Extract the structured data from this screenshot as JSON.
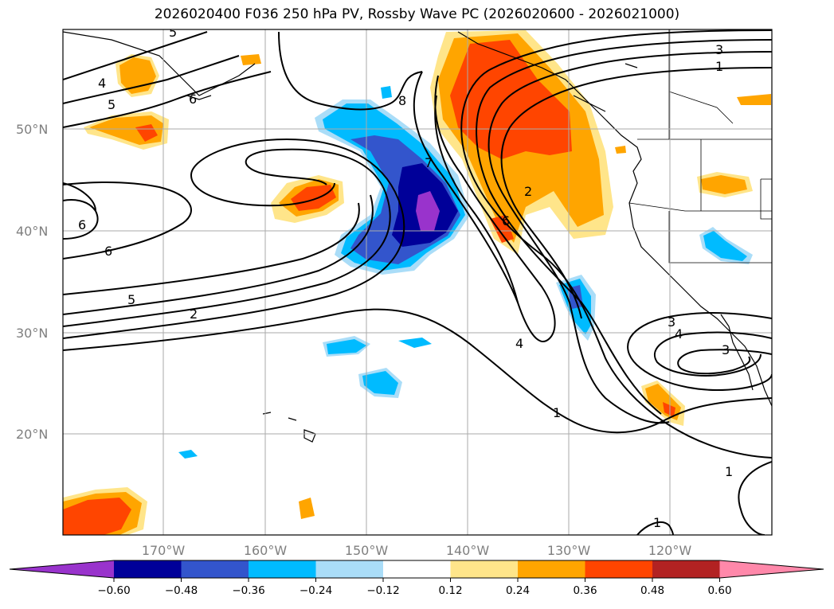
{
  "title": "2026020400 F036 250 hPa PV, Rossby Wave PC (2026020600 - 2026021000)",
  "map": {
    "lat_labels": [
      "50°N",
      "40°N",
      "30°N",
      "20°N"
    ],
    "lon_labels": [
      "170°W",
      "160°W",
      "150°W",
      "140°W",
      "130°W",
      "120°W"
    ],
    "gridline_color": "#aaaaaa"
  },
  "contour_labels": [
    "5",
    "4",
    "5",
    "6",
    "8",
    "7",
    "3",
    "1",
    "2",
    "6",
    "6",
    "5",
    "2",
    "4",
    "1",
    "3",
    "4",
    "3",
    "1",
    "1",
    "6"
  ],
  "colorbar": {
    "colors": [
      "#9933cc",
      "#000099",
      "#3355cc",
      "#00bbff",
      "#aaddf8",
      "#ffffff",
      "#ffe58a",
      "#ffa500",
      "#ff4500",
      "#b22222",
      "#ff88aa"
    ],
    "tick_labels": [
      "−0.60",
      "−0.48",
      "−0.36",
      "−0.24",
      "−0.12",
      "0.12",
      "0.24",
      "0.36",
      "0.48",
      "0.60"
    ]
  }
}
